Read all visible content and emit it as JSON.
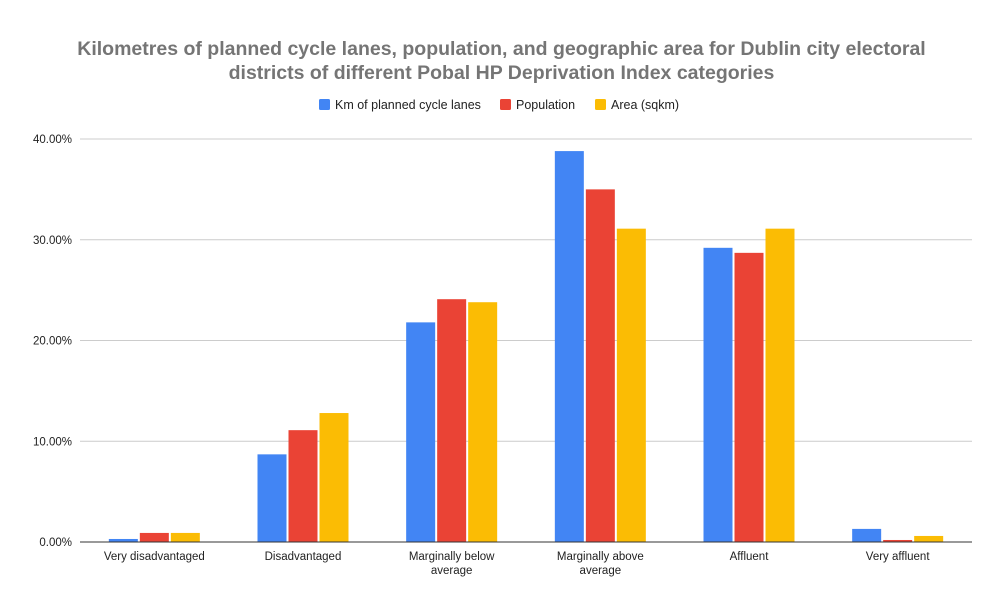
{
  "chart_data": {
    "type": "bar",
    "title_lines": [
      "Kilometres of planned cycle lanes, population, and geographic area for Dublin city electoral",
      "districts of different Pobal HP Deprivation Index categories"
    ],
    "xlabel": "",
    "ylabel": "",
    "ylim": [
      0,
      40
    ],
    "y_ticks": [
      0,
      10,
      20,
      30,
      40
    ],
    "y_tick_labels": [
      "0.00%",
      "10.00%",
      "20.00%",
      "30.00%",
      "40.00%"
    ],
    "grid": true,
    "legend_position": "top",
    "categories": [
      [
        "Very disadvantaged"
      ],
      [
        "Disadvantaged"
      ],
      [
        "Marginally below",
        "average"
      ],
      [
        "Marginally above",
        "average"
      ],
      [
        "Affluent"
      ],
      [
        "Very affluent"
      ]
    ],
    "series": [
      {
        "name": "Km of planned cycle lanes",
        "color": "#4285f4",
        "values": [
          0.3,
          8.7,
          21.8,
          38.8,
          29.2,
          1.3
        ]
      },
      {
        "name": "Population",
        "color": "#ea4335",
        "values": [
          0.9,
          11.1,
          24.1,
          35.0,
          28.7,
          0.2
        ]
      },
      {
        "name": "Area (sqkm)",
        "color": "#fbbc04",
        "values": [
          0.9,
          12.8,
          23.8,
          31.1,
          31.1,
          0.6
        ]
      }
    ]
  }
}
